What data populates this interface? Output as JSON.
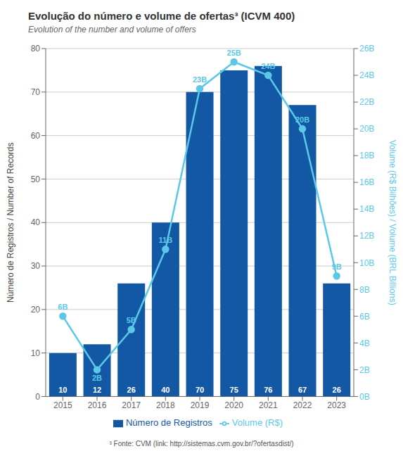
{
  "chart_data": {
    "type": "bar",
    "title": "Evolução do número e volume de ofertas³ (ICVM 400)",
    "subtitle": "Evolution of the number and volume of offers",
    "categories": [
      "2015",
      "2016",
      "2017",
      "2018",
      "2019",
      "2020",
      "2021",
      "2022",
      "2023"
    ],
    "y_label": "Número de Registros / Number of Records",
    "y2_label": "Volume (R$ Bilhões) / Volume (BRL Billions)",
    "series": [
      {
        "name": "Número de Registros",
        "type": "bar",
        "color": "#1358a5",
        "values": [
          10,
          12,
          26,
          40,
          70,
          75,
          76,
          67,
          26
        ]
      },
      {
        "name": "Volume (R$)",
        "type": "line",
        "axis": "y2",
        "color": "#5bc8e8",
        "marker": "circle",
        "values": [
          6,
          2,
          5,
          11,
          23,
          25,
          24,
          20,
          9
        ],
        "value_labels": [
          "6B",
          "2B",
          "5B",
          "11B",
          "23B",
          "25B",
          "24B",
          "20B",
          "9B"
        ]
      }
    ],
    "ylim": [
      0,
      80
    ],
    "yticks": [
      0,
      10,
      20,
      30,
      40,
      50,
      60,
      70,
      80
    ],
    "y2lim": [
      0,
      26
    ],
    "y2ticks": [
      {
        "value": 0,
        "label": "0B"
      },
      {
        "value": 2,
        "label": "2B"
      },
      {
        "value": 4,
        "label": "4B"
      },
      {
        "value": 6,
        "label": "6B"
      },
      {
        "value": 8,
        "label": "8B"
      },
      {
        "value": 10,
        "label": "10B"
      },
      {
        "value": 12,
        "label": "12B"
      },
      {
        "value": 14,
        "label": "14B"
      },
      {
        "value": 16,
        "label": "16B"
      },
      {
        "value": 18,
        "label": "18B"
      },
      {
        "value": 20,
        "label": "20B"
      },
      {
        "value": 22,
        "label": "22B"
      },
      {
        "value": 24,
        "label": "24B"
      },
      {
        "value": 26,
        "label": "26B"
      }
    ],
    "grid": true,
    "legend": "bottom",
    "data_labels": true,
    "annotations": [
      "³ Fonte: CVM (link: http://sistemas.cvm.gov.br/?ofertasdist/)"
    ]
  }
}
